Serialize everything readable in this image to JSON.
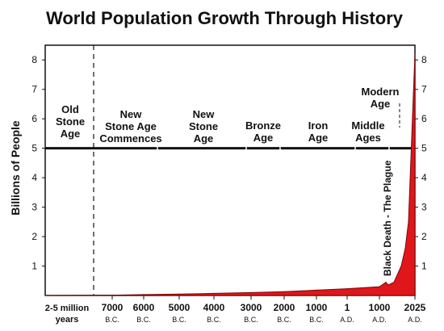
{
  "chart_data": {
    "type": "area",
    "title": "World Population Growth Through History",
    "ylabel": "Billions of People",
    "ylim": [
      0,
      8.5
    ],
    "y_ticks": [
      "1",
      "2",
      "3",
      "4",
      "5",
      "6",
      "7",
      "8"
    ],
    "x_ticks": [
      {
        "top": "2-5 million",
        "bottom": "years"
      },
      {
        "top": "7000",
        "bottom": "B.C."
      },
      {
        "top": "6000",
        "bottom": "B.C."
      },
      {
        "top": "5000",
        "bottom": "B.C."
      },
      {
        "top": "4000",
        "bottom": "B.C."
      },
      {
        "top": "3000",
        "bottom": "B.C."
      },
      {
        "top": "2000",
        "bottom": "B.C."
      },
      {
        "top": "1000",
        "bottom": "B.C."
      },
      {
        "top": "1",
        "bottom": "A.D."
      },
      {
        "top": "1000",
        "bottom": "A.D."
      },
      {
        "top": "2025",
        "bottom": "A.D."
      }
    ],
    "series": [
      {
        "color": "#e0161b",
        "points": [
          {
            "x": "2-5 million years",
            "y": 0.0
          },
          {
            "x": "7000 B.C.",
            "y": 0.01
          },
          {
            "x": "6000 B.C.",
            "y": 0.03
          },
          {
            "x": "5000 B.C.",
            "y": 0.05
          },
          {
            "x": "4000 B.C.",
            "y": 0.07
          },
          {
            "x": "3000 B.C.",
            "y": 0.1
          },
          {
            "x": "2000 B.C.",
            "y": 0.13
          },
          {
            "x": "1000 B.C.",
            "y": 0.18
          },
          {
            "x": "1 A.D.",
            "y": 0.23
          },
          {
            "x": "1000 A.D.",
            "y": 0.3
          },
          {
            "x": "1348 A.D.",
            "y": 0.45
          },
          {
            "x": "1352 A.D.",
            "y": 0.36
          },
          {
            "x": "1500 A.D.",
            "y": 0.45
          },
          {
            "x": "1800 A.D.",
            "y": 1.0
          },
          {
            "x": "1900 A.D.",
            "y": 1.6
          },
          {
            "x": "1950 A.D.",
            "y": 2.5
          },
          {
            "x": "2000 A.D.",
            "y": 6.1
          },
          {
            "x": "2025 A.D.",
            "y": 8.2
          }
        ]
      }
    ],
    "eras": [
      "Old Stone Age",
      "New Stone Age Commences",
      "New Stone Age",
      "Bronze Age",
      "Iron Age",
      "Middle Ages",
      "Modern Age"
    ],
    "annotation": "Black Death - The Plague",
    "reference_line": 5
  }
}
